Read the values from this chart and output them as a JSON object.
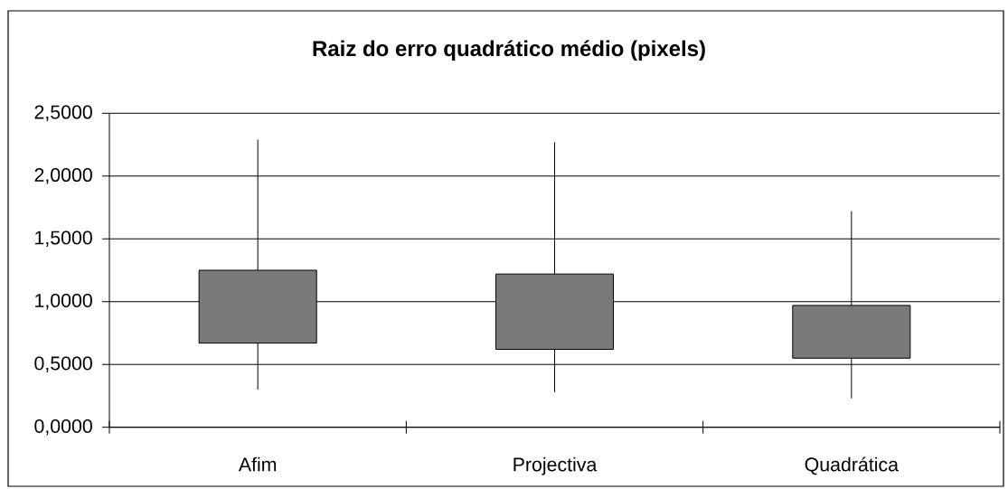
{
  "chart_data": {
    "type": "candlestick",
    "title": "Raiz do erro quadrático médio (pixels)",
    "categories": [
      "Afim",
      "Projectiva",
      "Quadrática"
    ],
    "ohlc": [
      [
        0.67,
        2.29,
        0.3,
        1.25
      ],
      [
        0.62,
        2.27,
        0.28,
        1.22
      ],
      [
        0.55,
        1.72,
        0.23,
        0.97
      ]
    ],
    "color": "#000000",
    "ylim": [
      0,
      2.5
    ],
    "yticks": [
      {
        "value": 0,
        "label": "0,0000"
      },
      {
        "value": 0.5,
        "label": "0,5000"
      },
      {
        "value": 1,
        "label": "1,0000"
      },
      {
        "value": 1.5,
        "label": "1,5000"
      },
      {
        "value": 2,
        "label": "2,0000"
      },
      {
        "value": 2.5,
        "label": "2,5000"
      }
    ],
    "grid": "y"
  }
}
